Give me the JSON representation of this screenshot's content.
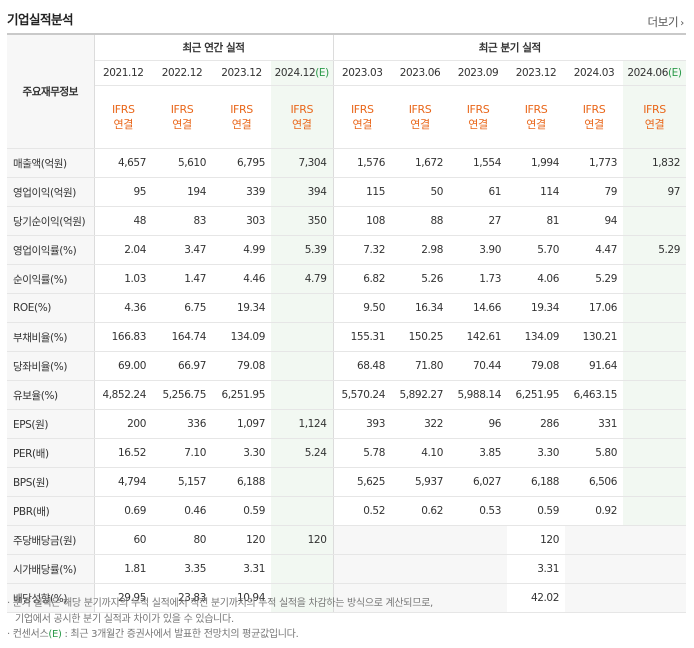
{
  "title": "기업실적분석",
  "more_label": "더보기",
  "header": {
    "row_label": "주요재무정보",
    "annual_group": "최근 연간 실적",
    "quarter_group": "최근 분기 실적",
    "periods": [
      {
        "base": "2021.12",
        "est": ""
      },
      {
        "base": "2022.12",
        "est": ""
      },
      {
        "base": "2023.12",
        "est": ""
      },
      {
        "base": "2024.12",
        "est": "(E)"
      },
      {
        "base": "2023.03",
        "est": ""
      },
      {
        "base": "2023.06",
        "est": ""
      },
      {
        "base": "2023.09",
        "est": ""
      },
      {
        "base": "2023.12",
        "est": ""
      },
      {
        "base": "2024.03",
        "est": ""
      },
      {
        "base": "2024.06",
        "est": "(E)"
      }
    ],
    "basis_line1": "IFRS",
    "basis_line2": "연결"
  },
  "rows": [
    {
      "label": "매출액(억원)",
      "values": [
        "4,657",
        "5,610",
        "6,795",
        "7,304",
        "1,576",
        "1,672",
        "1,554",
        "1,994",
        "1,773",
        "1,832"
      ]
    },
    {
      "label": "영업이익(억원)",
      "values": [
        "95",
        "194",
        "339",
        "394",
        "115",
        "50",
        "61",
        "114",
        "79",
        "97"
      ]
    },
    {
      "label": "당기순이익(억원)",
      "values": [
        "48",
        "83",
        "303",
        "350",
        "108",
        "88",
        "27",
        "81",
        "94",
        ""
      ]
    },
    {
      "label": "영업이익률(%)",
      "values": [
        "2.04",
        "3.47",
        "4.99",
        "5.39",
        "7.32",
        "2.98",
        "3.90",
        "5.70",
        "4.47",
        "5.29"
      ]
    },
    {
      "label": "순이익률(%)",
      "values": [
        "1.03",
        "1.47",
        "4.46",
        "4.79",
        "6.82",
        "5.26",
        "1.73",
        "4.06",
        "5.29",
        ""
      ]
    },
    {
      "label": "ROE(%)",
      "values": [
        "4.36",
        "6.75",
        "19.34",
        "",
        "9.50",
        "16.34",
        "14.66",
        "19.34",
        "17.06",
        ""
      ]
    },
    {
      "label": "부채비율(%)",
      "values": [
        "166.83",
        "164.74",
        "134.09",
        "",
        "155.31",
        "150.25",
        "142.61",
        "134.09",
        "130.21",
        ""
      ]
    },
    {
      "label": "당좌비율(%)",
      "values": [
        "69.00",
        "66.97",
        "79.08",
        "",
        "68.48",
        "71.80",
        "70.44",
        "79.08",
        "91.64",
        ""
      ]
    },
    {
      "label": "유보율(%)",
      "values": [
        "4,852.24",
        "5,256.75",
        "6,251.95",
        "",
        "5,570.24",
        "5,892.27",
        "5,988.14",
        "6,251.95",
        "6,463.15",
        ""
      ]
    },
    {
      "label": "EPS(원)",
      "values": [
        "200",
        "336",
        "1,097",
        "1,124",
        "393",
        "322",
        "96",
        "286",
        "331",
        ""
      ]
    },
    {
      "label": "PER(배)",
      "values": [
        "16.52",
        "7.10",
        "3.30",
        "5.24",
        "5.78",
        "4.10",
        "3.85",
        "3.30",
        "5.80",
        ""
      ]
    },
    {
      "label": "BPS(원)",
      "values": [
        "4,794",
        "5,157",
        "6,188",
        "",
        "5,625",
        "5,937",
        "6,027",
        "6,188",
        "6,506",
        ""
      ]
    },
    {
      "label": "PBR(배)",
      "values": [
        "0.69",
        "0.46",
        "0.59",
        "",
        "0.52",
        "0.62",
        "0.53",
        "0.59",
        "0.92",
        ""
      ]
    },
    {
      "label": "주당배당금(원)",
      "values": [
        "60",
        "80",
        "120",
        "120",
        "",
        "",
        "",
        "120",
        "",
        ""
      ]
    },
    {
      "label": "시가배당률(%)",
      "values": [
        "1.81",
        "3.35",
        "3.31",
        "",
        "",
        "",
        "",
        "3.31",
        "",
        ""
      ]
    },
    {
      "label": "배당성향(%)",
      "values": [
        "29.95",
        "23.83",
        "10.94",
        "",
        "",
        "",
        "",
        "42.02",
        "",
        ""
      ]
    }
  ],
  "notes": {
    "line1": "· 분기 실적은 해당 분기까지의 누적 실적에서 직전 분기까지의 누적 실적을 차감하는 방식으로 계산되므로,",
    "line2": "기업에서 공시한 분기 실적과 차이가 있을 수 있습니다.",
    "line3_pre": "· 컨센서스",
    "line3_tag": "(E)",
    "line3_post": " : 최근 3개월간 증권사에서 발표한 전망치의 평균값입니다."
  }
}
